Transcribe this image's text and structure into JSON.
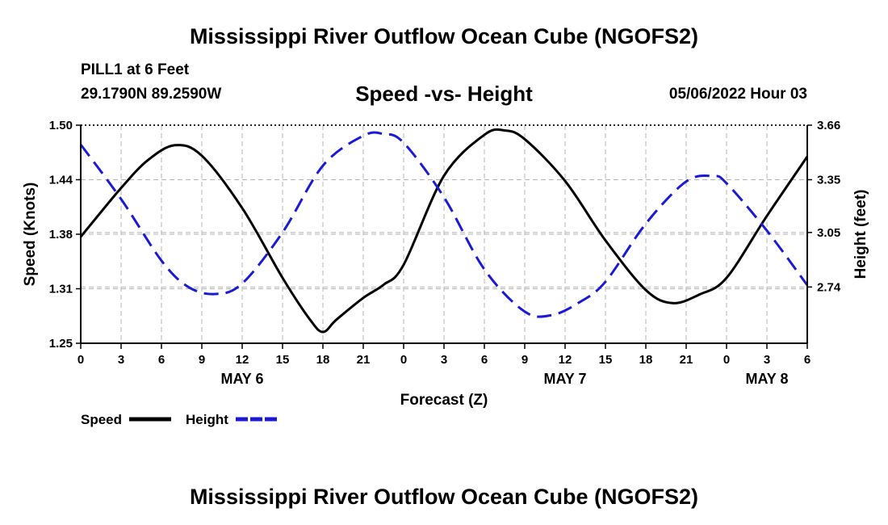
{
  "header": {
    "title": "Mississippi River Outflow Ocean Cube (NGOFS2)",
    "station": "PILL1 at 6 Feet",
    "coords": "29.1790N  89.2590W",
    "subtitle": "Speed -vs- Height",
    "datetime": "05/06/2022 Hour 03"
  },
  "footer": {
    "title": "Mississippi River Outflow Ocean Cube (NGOFS2)"
  },
  "chart_data": {
    "type": "line",
    "xlabel": "Forecast (Z)",
    "ylabel_left": "Speed (Knots)",
    "ylabel_right": "Height (feet)",
    "x_ticks": [
      "0",
      "3",
      "6",
      "9",
      "12",
      "15",
      "18",
      "21",
      "0",
      "3",
      "6",
      "9",
      "12",
      "15",
      "18",
      "21",
      "0",
      "3",
      "6"
    ],
    "day_labels": [
      {
        "label": "MAY 6",
        "tick_index": 4
      },
      {
        "label": "MAY 7",
        "tick_index": 12
      },
      {
        "label": "MAY 8",
        "tick_index": 17
      }
    ],
    "xlim": [
      0,
      54
    ],
    "y_left": {
      "lim": [
        1.25,
        1.5
      ],
      "ticks": [
        "1.25",
        "1.31",
        "1.38",
        "1.44",
        "1.50"
      ],
      "tick_values": [
        1.25,
        1.3125,
        1.375,
        1.4375,
        1.5
      ]
    },
    "y_right": {
      "lim": [
        2.42,
        3.66
      ],
      "ticks": [
        "2.74",
        "3.05",
        "3.35",
        "3.66"
      ],
      "tick_values": [
        2.74,
        3.05,
        3.35,
        3.66
      ]
    },
    "legend": [
      {
        "name": "Speed",
        "color": "#000000",
        "dash": "solid"
      },
      {
        "name": "Height",
        "color": "#1a1ad6",
        "dash": "dashed"
      }
    ],
    "series": [
      {
        "name": "Speed",
        "axis": "left",
        "unit": "knots",
        "color": "#000000",
        "x": [
          0,
          3,
          5,
          7,
          9,
          12,
          15,
          17,
          18,
          19,
          21,
          22.5,
          24,
          27,
          30,
          31.5,
          33,
          36,
          39,
          42,
          44,
          46,
          48,
          51,
          54
        ],
        "y": [
          1.372,
          1.428,
          1.46,
          1.477,
          1.465,
          1.405,
          1.325,
          1.278,
          1.263,
          1.277,
          1.302,
          1.317,
          1.34,
          1.442,
          1.489,
          1.494,
          1.484,
          1.436,
          1.368,
          1.311,
          1.296,
          1.306,
          1.325,
          1.396,
          1.464
        ]
      },
      {
        "name": "Height",
        "axis": "right",
        "unit": "feet",
        "color": "#1a1ad6",
        "x": [
          0,
          3,
          6,
          8,
          10,
          12,
          15,
          18,
          21,
          22.5,
          24,
          27,
          30,
          33,
          35,
          37,
          39,
          42,
          45,
          47,
          48,
          51,
          54
        ],
        "y": [
          3.55,
          3.24,
          2.89,
          2.74,
          2.7,
          2.76,
          3.05,
          3.43,
          3.6,
          3.61,
          3.56,
          3.25,
          2.84,
          2.6,
          2.58,
          2.65,
          2.77,
          3.1,
          3.34,
          3.37,
          3.33,
          3.06,
          2.75
        ]
      }
    ]
  }
}
